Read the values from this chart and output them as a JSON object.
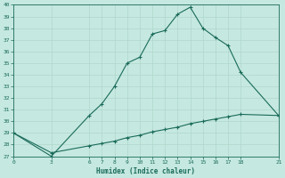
{
  "xlabel": "Humidex (Indice chaleur)",
  "bg_color": "#c5e8e0",
  "line_color": "#1a6b5a",
  "grid_color": "#b0d8cc",
  "x_ticks": [
    0,
    3,
    6,
    7,
    8,
    9,
    10,
    11,
    12,
    13,
    14,
    15,
    16,
    17,
    18,
    21
  ],
  "xlim": [
    0,
    21
  ],
  "ylim": [
    27,
    40
  ],
  "y_ticks": [
    27,
    28,
    29,
    30,
    31,
    32,
    33,
    34,
    35,
    36,
    37,
    38,
    39,
    40
  ],
  "line1_x": [
    0,
    3,
    6,
    7,
    8,
    9,
    10,
    11,
    12,
    13,
    14,
    15,
    16,
    17,
    18,
    21
  ],
  "line1_y": [
    29,
    27,
    30.5,
    31.5,
    33,
    35,
    35.5,
    37.5,
    37.8,
    39.2,
    39.8,
    38,
    37.2,
    36.5,
    34.2,
    30.5
  ],
  "line2_x": [
    0,
    3,
    6,
    7,
    8,
    9,
    10,
    11,
    12,
    13,
    14,
    15,
    16,
    17,
    18,
    21
  ],
  "line2_y": [
    29,
    27.3,
    27.9,
    28.1,
    28.3,
    28.6,
    28.8,
    29.1,
    29.3,
    29.5,
    29.8,
    30.0,
    30.2,
    30.4,
    30.6,
    30.5
  ]
}
